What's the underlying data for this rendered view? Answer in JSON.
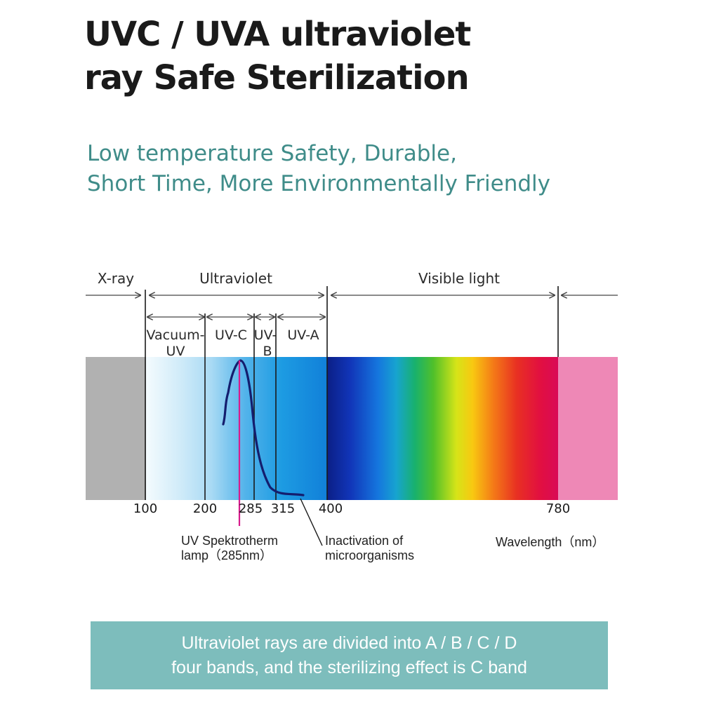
{
  "header": {
    "title_line1": "UVC / UVA ultraviolet",
    "title_line2": "ray Safe Sterilization",
    "subtitle_line1": "Low temperature Safety, Durable,",
    "subtitle_line2": "Short Time, More Environmentally Friendly"
  },
  "diagram": {
    "regions": {
      "xray": "X-ray",
      "ultraviolet": "Ultraviolet",
      "visible": "Visible light"
    },
    "bands": {
      "vacuum_line1": "Vacuum-",
      "vacuum_line2": "UV",
      "uvc": "UV-C",
      "uvb_line1": "UV-",
      "uvb_line2": "B",
      "uva": "UV-A"
    },
    "ticks": [
      "100",
      "200",
      "285",
      "315",
      "400",
      "780"
    ],
    "lamp_line1": "UV Spektrotherm",
    "lamp_line2": "lamp（285nm）",
    "inactivation_line1": "Inactivation  of",
    "inactivation_line2": "microorganisms",
    "wavelength": "Wavelength（nm）",
    "colors": {
      "xray": "#b1b1b1",
      "infrared": "#ee88b6",
      "peak_line": "#d81b8c",
      "curve": "#141e6e"
    }
  },
  "banner": {
    "line1": "Ultraviolet rays are divided into A / B / C / D",
    "line2": "four bands, and the sterilizing effect is C band",
    "color": "#7dbdbc"
  }
}
